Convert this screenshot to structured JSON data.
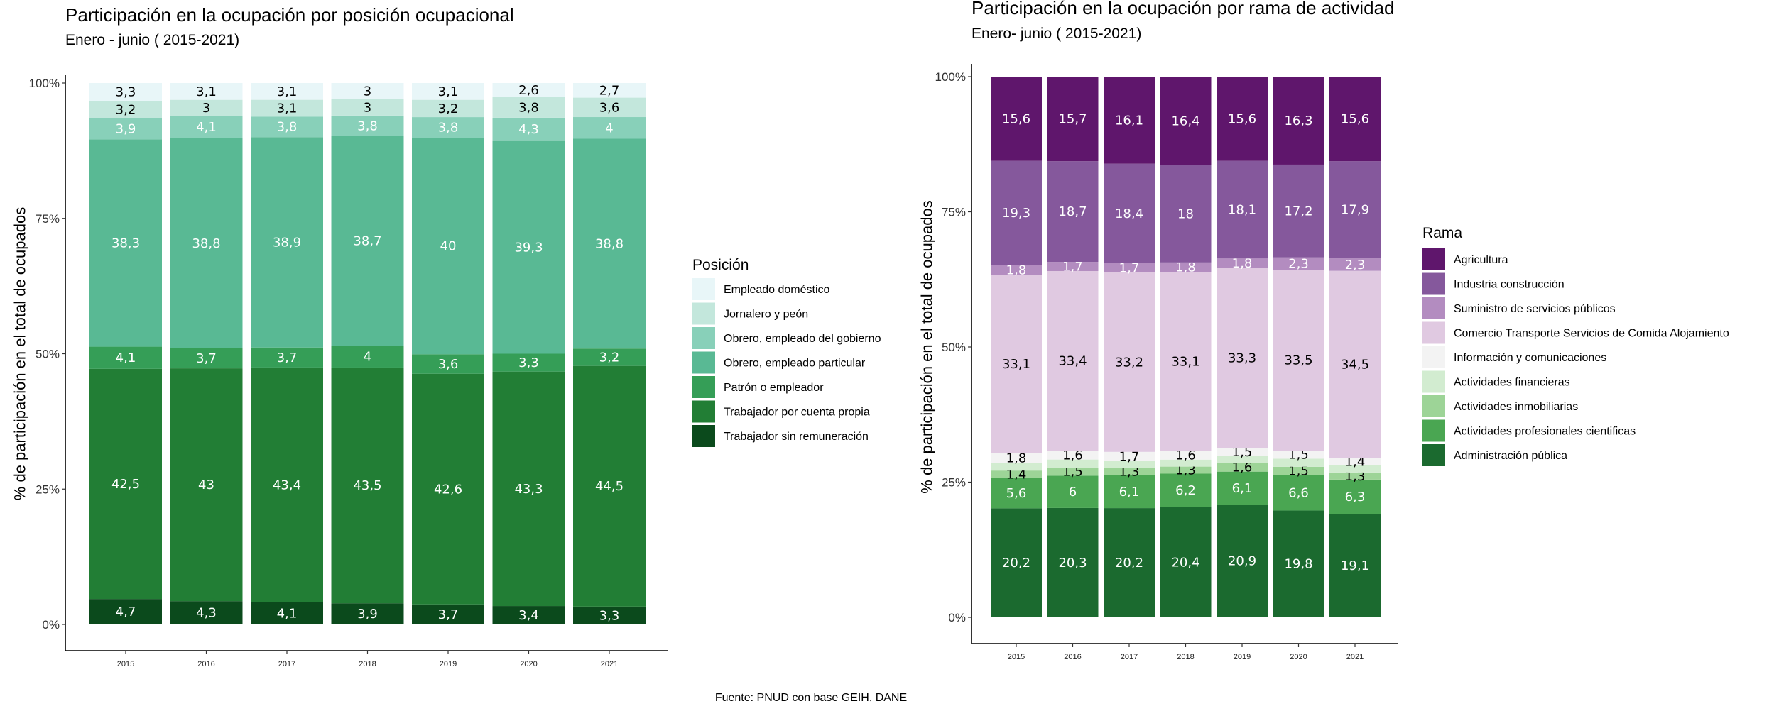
{
  "chart_data": [
    {
      "type": "bar",
      "stacked": true,
      "title": "Participación en la ocupación por posición ocupacional",
      "subtitle": "Enero - junio ( 2015-2021)",
      "xlabel": "",
      "ylabel": "% de participación en el total de ocupados",
      "ylim": [
        0,
        100
      ],
      "yticks": [
        "0%",
        "25%",
        "50%",
        "75%",
        "100%"
      ],
      "categories": [
        "2015",
        "2016",
        "2017",
        "2018",
        "2019",
        "2020",
        "2021"
      ],
      "legend_title": "Posición",
      "legend_position": "right",
      "series": [
        {
          "name": "Trabajador sin remuneración",
          "color": "#0b4a1c",
          "values": [
            4.7,
            4.3,
            4.1,
            3.9,
            3.7,
            3.4,
            3.3
          ],
          "labels": [
            "4,7",
            "4,3",
            "4,1",
            "3,9",
            "3,7",
            "3,4",
            "3,3"
          ]
        },
        {
          "name": "Trabajador por cuenta propia",
          "color": "#227e35",
          "values": [
            42.5,
            43,
            43.4,
            43.5,
            42.6,
            43.3,
            44.5
          ],
          "labels": [
            "42,5",
            "43",
            "43,4",
            "43,5",
            "42,6",
            "43,3",
            "44,5"
          ]
        },
        {
          "name": "Patrón o empleador",
          "color": "#359e57",
          "values": [
            4.1,
            3.7,
            3.7,
            4,
            3.6,
            3.3,
            3.2
          ],
          "labels": [
            "4,1",
            "3,7",
            "3,7",
            "4",
            "3,6",
            "3,3",
            "3,2"
          ]
        },
        {
          "name": "Obrero, empleado particular",
          "color": "#59b994",
          "values": [
            38.3,
            38.8,
            38.9,
            38.7,
            40,
            39.3,
            38.8
          ],
          "labels": [
            "38,3",
            "38,8",
            "38,9",
            "38,7",
            "40",
            "39,3",
            "38,8"
          ]
        },
        {
          "name": "Obrero, empleado del gobierno",
          "color": "#88d0b9",
          "values": [
            3.9,
            4.1,
            3.8,
            3.8,
            3.8,
            4.3,
            4
          ],
          "labels": [
            "3,9",
            "4,1",
            "3,8",
            "3,8",
            "3,8",
            "4,3",
            "4"
          ]
        },
        {
          "name": "Jornalero y peón",
          "color": "#c3e7dc",
          "values": [
            3.2,
            3,
            3.1,
            3,
            3.2,
            3.8,
            3.6
          ],
          "labels": [
            "3,2",
            "3",
            "3,1",
            "3",
            "3,2",
            "3,8",
            "3,6"
          ]
        },
        {
          "name": "Empleado doméstico",
          "color": "#e8f6f8",
          "values": [
            3.3,
            3.1,
            3.1,
            3,
            3.1,
            2.6,
            2.7
          ],
          "labels": [
            "3,3",
            "3,1",
            "3,1",
            "3",
            "3,1",
            "2,6",
            "2,7"
          ]
        }
      ]
    },
    {
      "type": "bar",
      "stacked": true,
      "title": "Participación en la ocupación por rama de actividad",
      "subtitle": "Enero- junio ( 2015-2021)",
      "xlabel": "",
      "ylabel": "% de participación en el total de ocupados",
      "ylim": [
        0,
        100
      ],
      "yticks": [
        "0%",
        "25%",
        "50%",
        "75%",
        "100%"
      ],
      "categories": [
        "2015",
        "2016",
        "2017",
        "2018",
        "2019",
        "2020",
        "2021"
      ],
      "legend_title": "Rama",
      "legend_position": "right",
      "series": [
        {
          "name": "Administración pública",
          "color": "#1b6a2f",
          "values": [
            20.2,
            20.3,
            20.2,
            20.4,
            20.9,
            19.8,
            19.1
          ],
          "labels": [
            "20,2",
            "20,3",
            "20,2",
            "20,4",
            "20,9",
            "19,8",
            "19,1"
          ]
        },
        {
          "name": "Actividades profesionales cientificas",
          "color": "#4aa652",
          "values": [
            5.6,
            6,
            6.1,
            6.2,
            6.1,
            6.6,
            6.3
          ],
          "labels": [
            "5,6",
            "6",
            "6,1",
            "6,2",
            "6,1",
            "6,6",
            "6,3"
          ]
        },
        {
          "name": "Actividades inmobiliarias",
          "color": "#9dd497",
          "values": [
            1.4,
            1.5,
            1.3,
            1.3,
            1.6,
            1.5,
            1.3
          ],
          "labels": [
            "1,4",
            "1,5",
            "1,3",
            "1,3",
            "1,6",
            "1,5",
            "1,3"
          ]
        },
        {
          "name": "Actividades financieras",
          "color": "#d2ecd0",
          "values": [
            1.4,
            1.5,
            1.3,
            1.3,
            1.3,
            1.5,
            1.3
          ],
          "labels": [
            "",
            "",
            "",
            "",
            "",
            "",
            ""
          ]
        },
        {
          "name": "Información y comunicaciones",
          "color": "#f3f3f3",
          "values": [
            1.8,
            1.6,
            1.7,
            1.6,
            1.5,
            1.5,
            1.4
          ],
          "labels": [
            "1,8",
            "1,6",
            "1,7",
            "1,6",
            "1,5",
            "1,5",
            "1,4"
          ]
        },
        {
          "name": "Comercio Transporte Servicios de Comida  Alojamiento",
          "color": "#e0c9e1",
          "values": [
            33.1,
            33.4,
            33.2,
            33.1,
            33.3,
            33.5,
            34.5
          ],
          "labels": [
            "33,1",
            "33,4",
            "33,2",
            "33,1",
            "33,3",
            "33,5",
            "34,5"
          ]
        },
        {
          "name": "Suministro de servicios públicos",
          "color": "#b38cc0",
          "values": [
            1.8,
            1.7,
            1.7,
            1.8,
            1.8,
            2.3,
            2.3
          ],
          "labels": [
            "1,8",
            "1,7",
            "1,7",
            "1,8",
            "1,8",
            "2,3",
            "2,3"
          ]
        },
        {
          "name": "Industria construcción",
          "color": "#85589c",
          "values": [
            19.3,
            18.7,
            18.4,
            18,
            18.1,
            17.2,
            17.9
          ],
          "labels": [
            "19,3",
            "18,7",
            "18,4",
            "18",
            "18,1",
            "17,2",
            "17,9"
          ]
        },
        {
          "name": "Agricultura",
          "color": "#5f166c",
          "values": [
            15.6,
            15.7,
            16.1,
            16.4,
            15.6,
            16.3,
            15.6
          ],
          "labels": [
            "15,6",
            "15,7",
            "16,1",
            "16,4",
            "15,6",
            "16,3",
            "15,6"
          ]
        }
      ]
    }
  ],
  "source": "Fuente: PNUD con base GEIH, DANE"
}
